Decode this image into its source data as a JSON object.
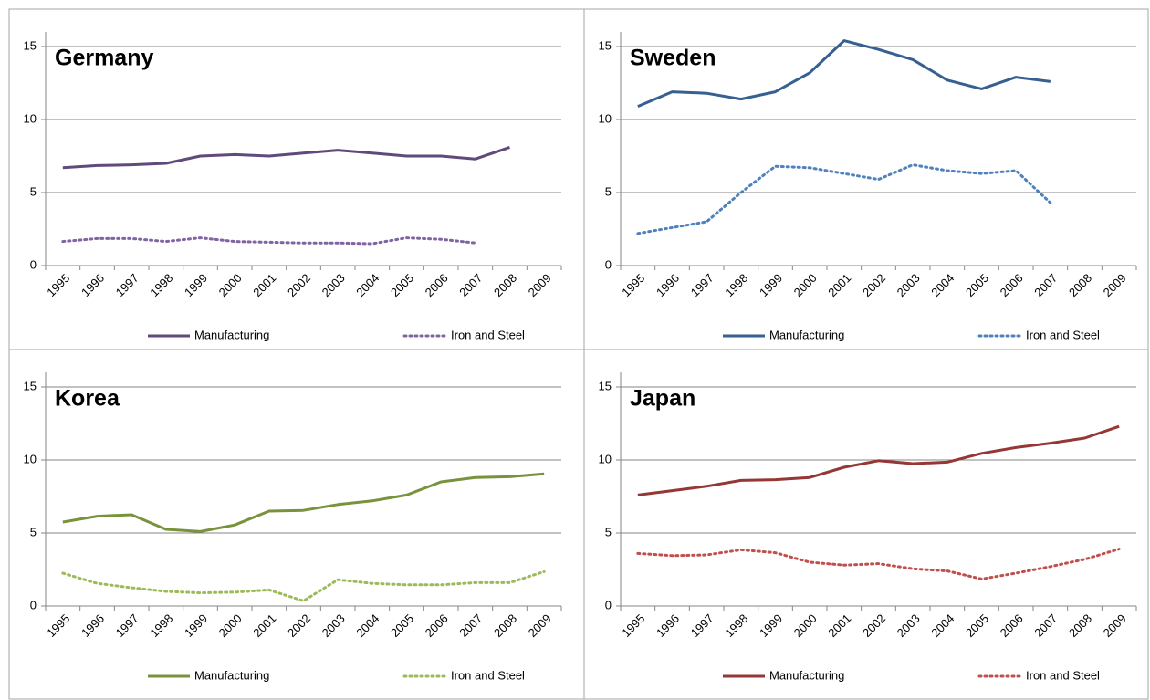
{
  "chart_data": [
    {
      "type": "line",
      "title": "Germany",
      "categories": [
        "1995",
        "1996",
        "1997",
        "1998",
        "1999",
        "2000",
        "2001",
        "2002",
        "2003",
        "2004",
        "2005",
        "2006",
        "2007",
        "2008",
        "2009"
      ],
      "series": [
        {
          "name": "Manufacturing",
          "color": "#604a7b",
          "dash": "solid",
          "values": [
            6.7,
            6.85,
            6.9,
            7.0,
            7.5,
            7.6,
            7.5,
            7.7,
            7.9,
            7.7,
            7.5,
            7.5,
            7.3,
            8.1,
            null
          ]
        },
        {
          "name": "Iron and Steel",
          "color": "#8064a2",
          "dash": "dotted",
          "values": [
            1.65,
            1.85,
            1.85,
            1.65,
            1.9,
            1.65,
            1.6,
            1.55,
            1.55,
            1.5,
            1.9,
            1.8,
            1.55,
            null,
            null
          ]
        }
      ],
      "ylim": [
        0,
        16
      ],
      "yticks": [
        0,
        5,
        10,
        15
      ],
      "grid": true,
      "legend": "bottom"
    },
    {
      "type": "line",
      "title": "Sweden",
      "categories": [
        "1995",
        "1996",
        "1997",
        "1998",
        "1999",
        "2000",
        "2001",
        "2002",
        "2003",
        "2004",
        "2005",
        "2006",
        "2007",
        "2008",
        "2009"
      ],
      "series": [
        {
          "name": "Manufacturing",
          "color": "#376092",
          "dash": "solid",
          "values": [
            10.9,
            11.9,
            11.8,
            11.4,
            11.9,
            13.2,
            15.4,
            14.8,
            14.1,
            12.7,
            12.1,
            12.9,
            12.6,
            null,
            null
          ]
        },
        {
          "name": "Iron and Steel",
          "color": "#4f81bd",
          "dash": "dotted",
          "values": [
            2.2,
            2.6,
            3.0,
            5.0,
            6.8,
            6.7,
            6.3,
            5.9,
            6.9,
            6.5,
            6.3,
            6.5,
            4.3,
            null,
            null
          ]
        }
      ],
      "ylim": [
        0,
        16
      ],
      "yticks": [
        0,
        5,
        10,
        15
      ],
      "grid": true,
      "legend": "bottom"
    },
    {
      "type": "line",
      "title": "Korea",
      "categories": [
        "1995",
        "1996",
        "1997",
        "1998",
        "1999",
        "2000",
        "2001",
        "2002",
        "2003",
        "2004",
        "2005",
        "2006",
        "2007",
        "2008",
        "2009"
      ],
      "series": [
        {
          "name": "Manufacturing",
          "color": "#77933c",
          "dash": "solid",
          "values": [
            5.75,
            6.15,
            6.25,
            5.25,
            5.1,
            5.55,
            6.5,
            6.55,
            6.95,
            7.2,
            7.6,
            8.5,
            8.8,
            8.85,
            9.05
          ]
        },
        {
          "name": "Iron and Steel",
          "color": "#9bbb59",
          "dash": "dotted",
          "values": [
            2.25,
            1.55,
            1.25,
            1.0,
            0.9,
            0.95,
            1.1,
            0.35,
            1.8,
            1.55,
            1.45,
            1.45,
            1.6,
            1.6,
            2.35
          ]
        }
      ],
      "ylim": [
        0,
        16
      ],
      "yticks": [
        0,
        5,
        10,
        15
      ],
      "grid": true,
      "legend": "bottom"
    },
    {
      "type": "line",
      "title": "Japan",
      "categories": [
        "1995",
        "1996",
        "1997",
        "1998",
        "1999",
        "2000",
        "2001",
        "2002",
        "2003",
        "2004",
        "2005",
        "2006",
        "2007",
        "2008",
        "2009"
      ],
      "series": [
        {
          "name": "Manufacturing",
          "color": "#953735",
          "dash": "solid",
          "values": [
            7.6,
            7.9,
            8.2,
            8.6,
            8.65,
            8.8,
            9.5,
            9.95,
            9.75,
            9.85,
            10.45,
            10.85,
            11.15,
            11.5,
            12.3
          ]
        },
        {
          "name": "Iron and Steel",
          "color": "#c0504d",
          "dash": "dotted",
          "values": [
            3.6,
            3.45,
            3.5,
            3.85,
            3.65,
            3.0,
            2.8,
            2.9,
            2.55,
            2.4,
            1.85,
            2.25,
            2.7,
            3.2,
            3.9
          ]
        }
      ],
      "ylim": [
        0,
        16
      ],
      "yticks": [
        0,
        5,
        10,
        15
      ],
      "grid": true,
      "legend": "bottom"
    }
  ]
}
